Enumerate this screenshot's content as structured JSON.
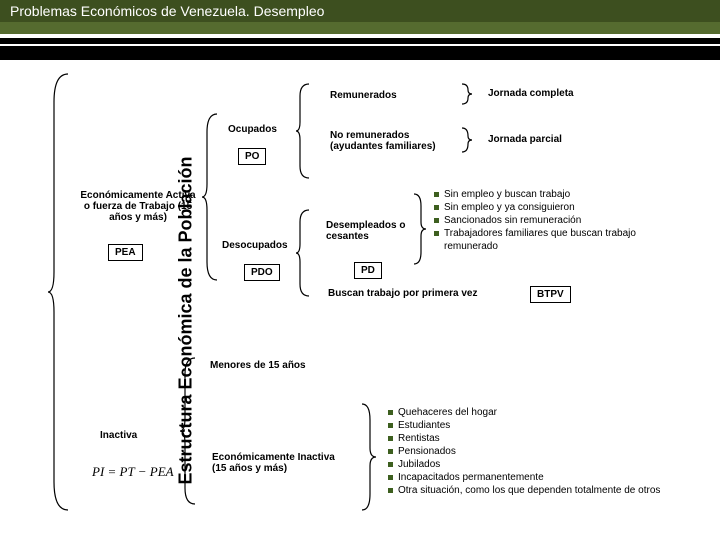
{
  "header": {
    "title": "Problemas Económicos de Venezuela.  Desempleo"
  },
  "sideLabel": "Estructura Económica de la Población",
  "nodes": {
    "ocupados": "Ocupados",
    "po": "PO",
    "pea_full": "Económicamente Activa o fuerza de Trabajo   (15 años y más)",
    "pea": "PEA",
    "desocupados": "Desocupados",
    "pdo": "PDO",
    "remunerados": "Remunerados",
    "no_remunerados": "No remunerados (ayudantes familiares)",
    "jornada_completa": "Jornada completa",
    "jornada_parcial": "Jornada parcial",
    "desempleados": "Desempleados o cesantes",
    "pd": "PD",
    "buscan_primera": "Buscan trabajo por primera vez",
    "btpv": "BTPV",
    "menores": "Menores de 15 años",
    "inactiva": "Inactiva",
    "econ_inactiva": "Económicamente Inactiva (15 años y más)",
    "formula": "PI = PT − PEA"
  },
  "bullets_pd": [
    "Sin empleo y buscan trabajo",
    "Sin empleo y ya consiguieron",
    "Sancionados sin remuneración",
    "Trabajadores familiares que buscan trabajo remunerado"
  ],
  "bullets_inactiva": [
    "Quehaceres del hogar",
    "Estudiantes",
    "Rentistas",
    "Pensionados",
    "Jubilados",
    "Incapacitados permanentemente",
    "Otra situación, como los que dependen totalmente de otros"
  ],
  "style": {
    "type": "tree",
    "brace_color": "#000000",
    "brace_width": 1.2,
    "bullet_color": "#3d5f1f",
    "header_bg": "#3d4f1f",
    "header_text": "#ffffff",
    "stripe_color": "#000000",
    "body_bg": "#ffffff",
    "font_main": 10,
    "font_side": 18,
    "box_border": "#000000"
  }
}
